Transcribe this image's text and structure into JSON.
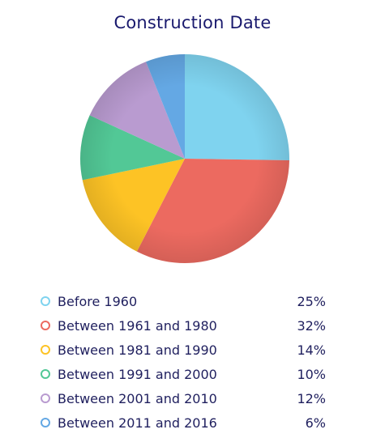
{
  "chart_data": {
    "type": "pie",
    "title": "Construction Date",
    "slices": [
      {
        "label": "Before 1960",
        "value": 25,
        "value_label": "25%",
        "color": "#7fd3ef"
      },
      {
        "label": "Between 1961 and 1980",
        "value": 32,
        "value_label": "32%",
        "color": "#ec6a60"
      },
      {
        "label": "Between 1981 and 1990",
        "value": 14,
        "value_label": "14%",
        "color": "#fdc325"
      },
      {
        "label": "Between 1991 and 2000",
        "value": 10,
        "value_label": "10%",
        "color": "#52c896"
      },
      {
        "label": "Between 2001 and 2010",
        "value": 12,
        "value_label": "12%",
        "color": "#b99bd0"
      },
      {
        "label": "Between 2011 and 2016",
        "value": 6,
        "value_label": "6%",
        "color": "#64a8e4"
      }
    ]
  }
}
